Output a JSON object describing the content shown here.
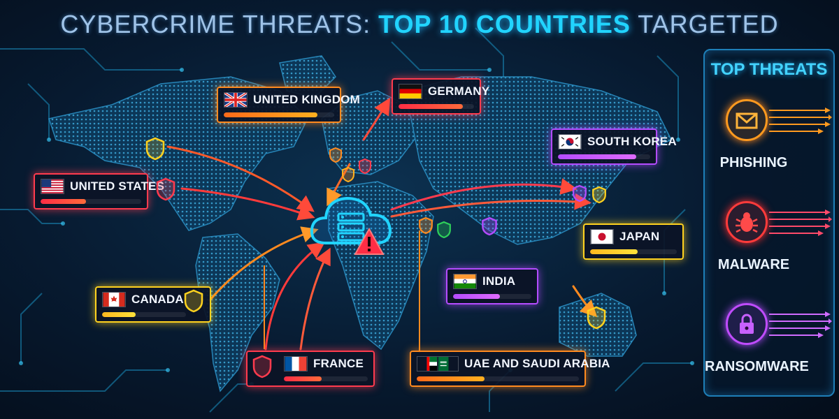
{
  "title": {
    "prefix": "CYBERCRIME THREATS: ",
    "highlight": "TOP 10 COUNTRIES",
    "suffix": " TARGETED"
  },
  "countries": [
    {
      "name": "UNITED KINGDOM",
      "flag": "uk-flag",
      "level": 0.85
    },
    {
      "name": "GERMANY",
      "flag": "germany-flag",
      "level": 0.85
    },
    {
      "name": "SOUTH KOREA",
      "flag": "south-korea-flag",
      "level": 0.85
    },
    {
      "name": "UNITED STATES",
      "flag": "us-flag",
      "level": 0.45
    },
    {
      "name": "JAPAN",
      "flag": "japan-flag",
      "level": 0.55
    },
    {
      "name": "INDIA",
      "flag": "india-flag",
      "level": 0.6
    },
    {
      "name": "CANADA",
      "flag": "canada-flag",
      "level": 0.4
    },
    {
      "name": "FRANCE",
      "flag": "france-flag",
      "level": 0.45
    },
    {
      "name": "UAE AND SAUDI ARABIA",
      "flag": "uae-saudi-flags",
      "level": 0.42
    }
  ],
  "panel": {
    "title": "TOP THREATS",
    "threats": [
      {
        "label": "PHISHING",
        "icon": "envelope-icon",
        "color": "#ff9a1f"
      },
      {
        "label": "MALWARE",
        "icon": "bug-icon",
        "color": "#ff3b3b"
      },
      {
        "label": "RANSOMWARE",
        "icon": "padlock-icon",
        "color": "#c04cff"
      }
    ]
  },
  "colors": {
    "red": "#ff3b4e",
    "orange": "#ff8a1f",
    "yellow": "#ffd21f",
    "purple": "#b44cff",
    "cyan": "#21d4ff"
  }
}
